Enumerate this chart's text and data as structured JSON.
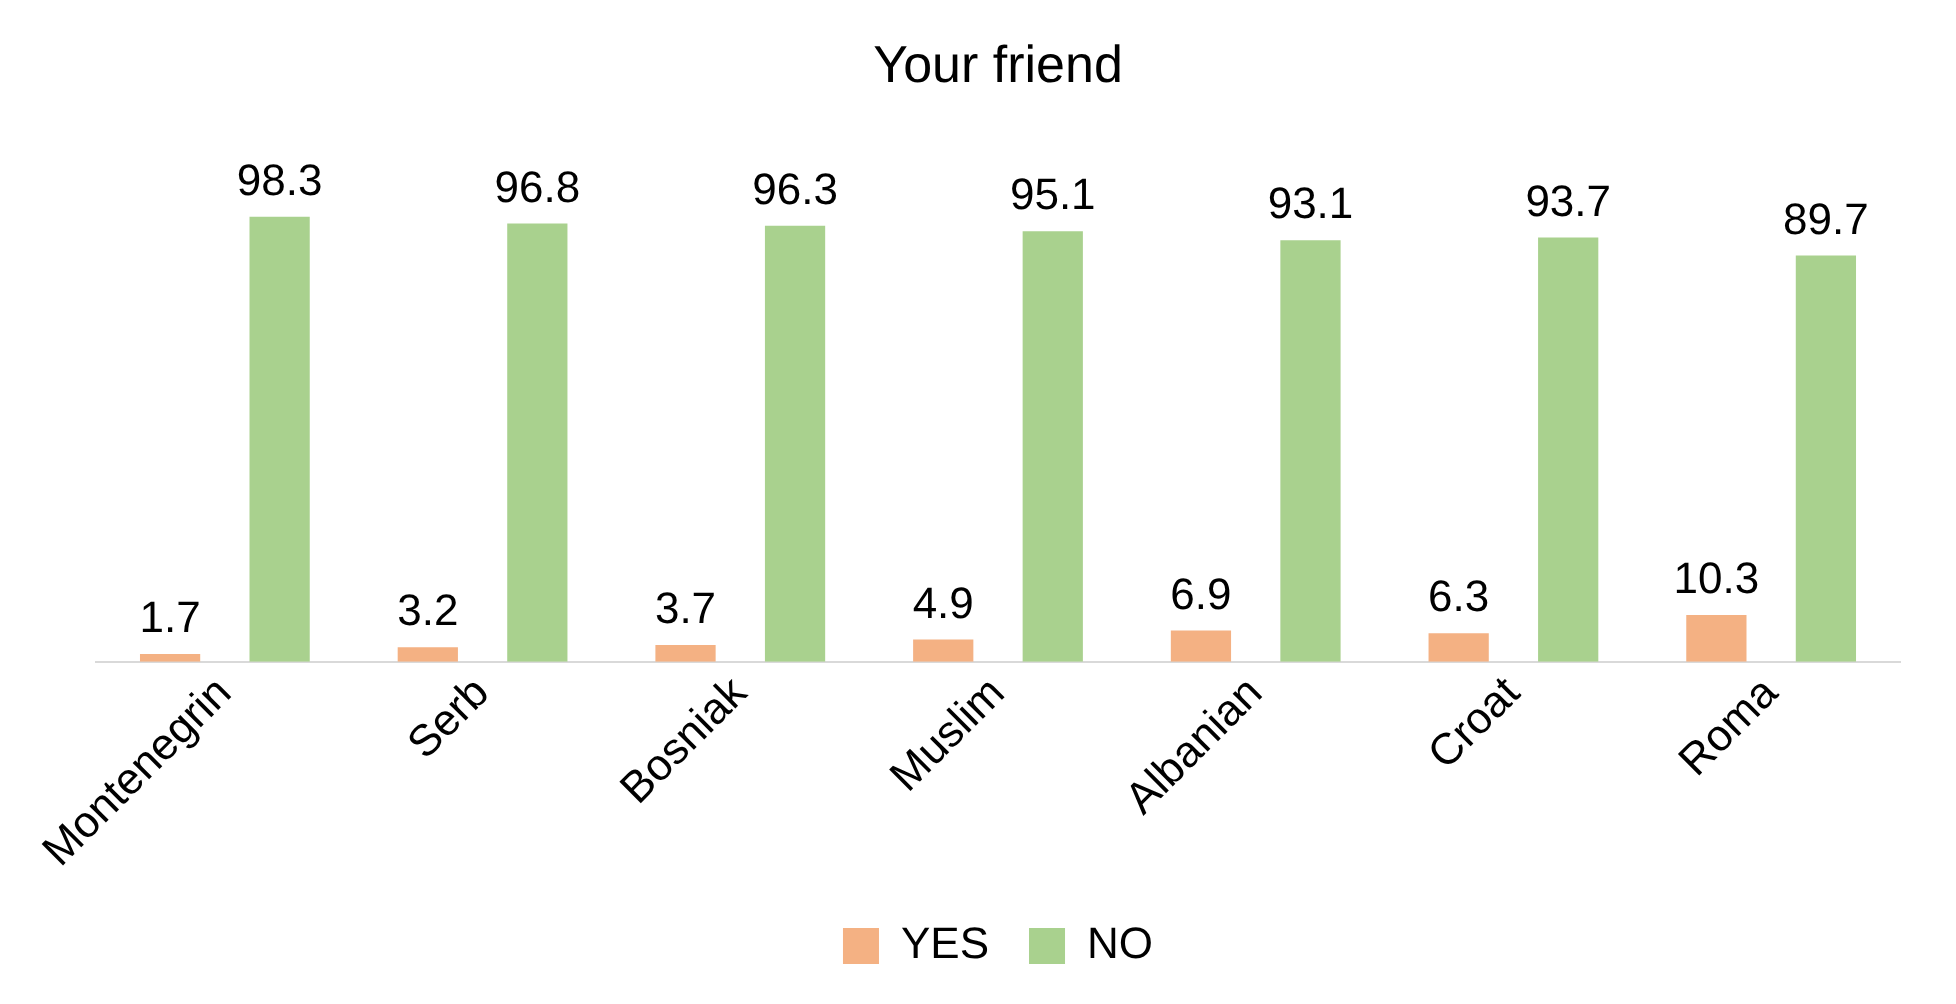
{
  "chart_data": {
    "type": "bar",
    "title": "Your friend",
    "categories": [
      "Montenegrin",
      "Serb",
      "Bosniak",
      "Muslim",
      "Albanian",
      "Croat",
      "Roma"
    ],
    "series": [
      {
        "name": "YES",
        "color": "#f4b183",
        "values": [
          1.7,
          3.2,
          3.7,
          4.9,
          6.9,
          6.3,
          10.3
        ]
      },
      {
        "name": "NO",
        "color": "#a9d18e",
        "values": [
          98.3,
          96.8,
          96.3,
          95.1,
          93.1,
          93.7,
          89.7
        ]
      }
    ],
    "data_labels": true,
    "legend": "bottom",
    "grid": false,
    "tick_labels": "x"
  }
}
